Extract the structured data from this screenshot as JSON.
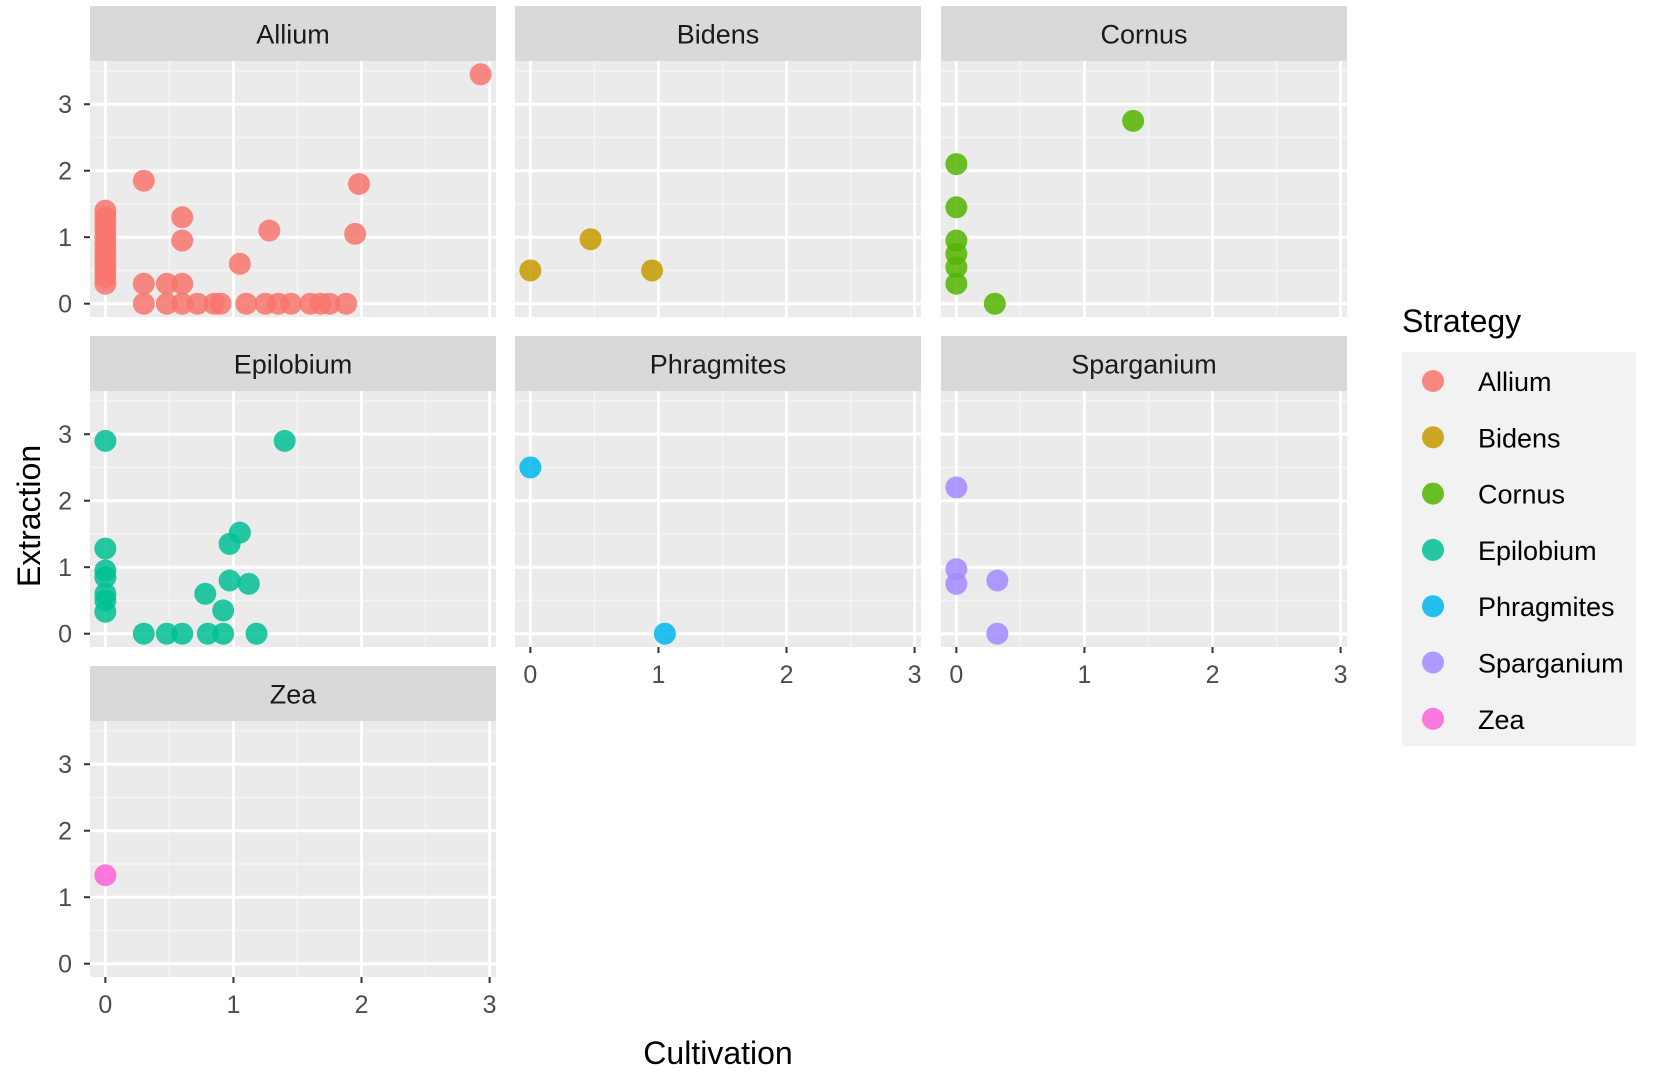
{
  "chart_data": {
    "type": "scatter",
    "layout": "facet_wrap",
    "xlabel": "Cultivation",
    "ylabel": "Extraction",
    "xlim": [
      -0.12,
      3.05
    ],
    "ylim": [
      -0.2,
      3.65
    ],
    "xticks": [
      0,
      1,
      2,
      3
    ],
    "yticks": [
      0,
      1,
      2,
      3
    ],
    "grid": true,
    "legend": {
      "title": "Strategy",
      "position": "right",
      "entries": [
        "Allium",
        "Bidens",
        "Cornus",
        "Epilobium",
        "Phragmites",
        "Sparganium",
        "Zea"
      ]
    },
    "colors": {
      "Allium": "#F8766D",
      "Bidens": "#C49A00",
      "Cornus": "#53B400",
      "Epilobium": "#00C094",
      "Phragmites": "#00B6EB",
      "Sparganium": "#A58AFF",
      "Zea": "#FB61D7"
    },
    "panels": [
      {
        "name": "Allium",
        "points": [
          [
            0,
            0.3
          ],
          [
            0,
            0.4
          ],
          [
            0,
            0.5
          ],
          [
            0,
            0.6
          ],
          [
            0,
            0.7
          ],
          [
            0,
            0.8
          ],
          [
            0,
            0.9
          ],
          [
            0,
            1.0
          ],
          [
            0,
            1.1
          ],
          [
            0,
            1.2
          ],
          [
            0,
            1.3
          ],
          [
            0,
            1.4
          ],
          [
            0.3,
            1.85
          ],
          [
            0.3,
            0.3
          ],
          [
            0.3,
            0.0
          ],
          [
            0.48,
            0.3
          ],
          [
            0.48,
            0.0
          ],
          [
            0.6,
            1.3
          ],
          [
            0.6,
            0.95
          ],
          [
            0.6,
            0.3
          ],
          [
            0.6,
            0.0
          ],
          [
            0.72,
            0.0
          ],
          [
            0.85,
            0.0
          ],
          [
            0.9,
            0.0
          ],
          [
            1.05,
            0.6
          ],
          [
            1.1,
            0.0
          ],
          [
            1.25,
            0.0
          ],
          [
            1.28,
            1.1
          ],
          [
            1.35,
            0.0
          ],
          [
            1.45,
            0.0
          ],
          [
            1.6,
            0.0
          ],
          [
            1.68,
            0.0
          ],
          [
            1.75,
            0.0
          ],
          [
            1.88,
            0.0
          ],
          [
            1.95,
            1.05
          ],
          [
            1.98,
            1.8
          ],
          [
            2.93,
            3.45
          ]
        ]
      },
      {
        "name": "Bidens",
        "points": [
          [
            0,
            0.5
          ],
          [
            0.47,
            0.97
          ],
          [
            0.95,
            0.5
          ]
        ]
      },
      {
        "name": "Cornus",
        "points": [
          [
            0,
            2.1
          ],
          [
            0,
            1.45
          ],
          [
            0,
            0.95
          ],
          [
            0,
            0.75
          ],
          [
            0,
            0.55
          ],
          [
            0,
            0.3
          ],
          [
            0.3,
            0.0
          ],
          [
            1.38,
            2.75
          ]
        ]
      },
      {
        "name": "Epilobium",
        "points": [
          [
            0,
            2.9
          ],
          [
            0,
            1.28
          ],
          [
            0,
            0.95
          ],
          [
            0,
            0.85
          ],
          [
            0,
            0.6
          ],
          [
            0,
            0.5
          ],
          [
            0,
            0.33
          ],
          [
            0.3,
            0.0
          ],
          [
            0.48,
            0.0
          ],
          [
            0.6,
            0.0
          ],
          [
            0.78,
            0.6
          ],
          [
            0.8,
            0.0
          ],
          [
            0.92,
            0.35
          ],
          [
            0.92,
            0.0
          ],
          [
            0.97,
            1.35
          ],
          [
            0.97,
            0.8
          ],
          [
            1.05,
            1.52
          ],
          [
            1.12,
            0.75
          ],
          [
            1.18,
            0.0
          ],
          [
            1.4,
            2.9
          ]
        ]
      },
      {
        "name": "Phragmites",
        "points": [
          [
            0,
            2.5
          ],
          [
            1.05,
            0.0
          ]
        ]
      },
      {
        "name": "Sparganium",
        "points": [
          [
            0,
            2.2
          ],
          [
            0,
            0.97
          ],
          [
            0,
            0.75
          ],
          [
            0.32,
            0.8
          ],
          [
            0.32,
            0.0
          ]
        ]
      },
      {
        "name": "Zea",
        "points": [
          [
            0,
            1.33
          ]
        ]
      }
    ]
  }
}
